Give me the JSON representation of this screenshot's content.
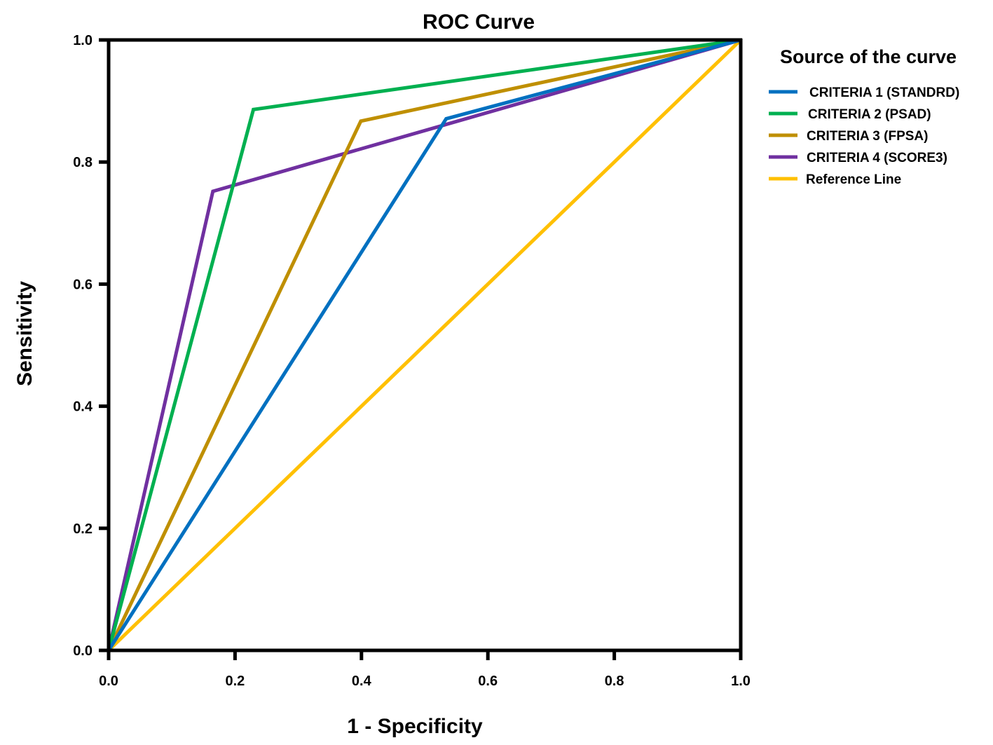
{
  "chart_data": {
    "type": "line",
    "title": "ROC  Curve",
    "xlabel": "1 - Specificity",
    "ylabel": "Sensitivity",
    "xlim": [
      0.0,
      1.0
    ],
    "ylim": [
      0.0,
      1.0
    ],
    "xticks": [
      "0.0",
      "0.2",
      "0.4",
      "0.6",
      "0.8",
      "1.0"
    ],
    "yticks": [
      "0.0",
      "0.2",
      "0.4",
      "0.6",
      "0.8",
      "1.0"
    ],
    "grid": false,
    "legend": {
      "title": "Source of the curve",
      "placement": "right-top"
    },
    "series": [
      {
        "name": "CRITERIA 1 (STANDRD)",
        "color": "#0070c0",
        "x": [
          0.0,
          0.534,
          1.0
        ],
        "y": [
          0.0,
          0.871,
          1.0
        ]
      },
      {
        "name": "CRITERIA 2 (PSAD)",
        "color": "#00b050",
        "x": [
          0.0,
          0.229,
          1.0
        ],
        "y": [
          0.0,
          0.886,
          1.0
        ]
      },
      {
        "name": "CRITERIA 3 (FPSA)",
        "color": "#bf8f00",
        "x": [
          0.0,
          0.399,
          1.0
        ],
        "y": [
          0.0,
          0.867,
          1.0
        ]
      },
      {
        "name": "CRITERIA 4 (SCORE3)",
        "color": "#7030a0",
        "x": [
          0.0,
          0.165,
          1.0
        ],
        "y": [
          0.0,
          0.752,
          1.0
        ]
      },
      {
        "name": "Reference Line",
        "color": "#ffc000",
        "x": [
          0.0,
          1.0
        ],
        "y": [
          0.0,
          1.0
        ]
      }
    ]
  }
}
